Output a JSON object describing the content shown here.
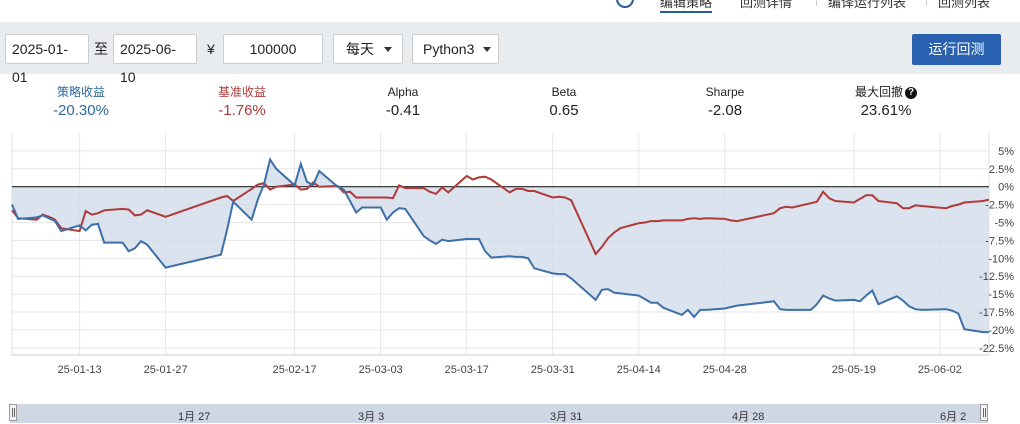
{
  "top_tabs": [
    "编辑策略",
    "回测详情",
    "编译运行列表",
    "回测列表"
  ],
  "toolbar": {
    "start_date": "2025-01-01",
    "to_label": "至",
    "end_date": "2025-06-10",
    "currency_symbol": "¥",
    "capital": "100000",
    "frequency": "每天",
    "language": "Python3",
    "run_button": "运行回测"
  },
  "metrics": [
    {
      "label": "策略收益",
      "value": "-20.30%",
      "label_color": "#2d6a9f",
      "value_color": "#2d6a9f"
    },
    {
      "label": "基准收益",
      "value": "-1.76%",
      "label_color": "#b03a3a",
      "value_color": "#b03a3a"
    },
    {
      "label": "Alpha",
      "value": "-0.41"
    },
    {
      "label": "Beta",
      "value": "0.65"
    },
    {
      "label": "Sharpe",
      "value": "-2.08"
    },
    {
      "label": "最大回撤",
      "value": "23.61%"
    }
  ],
  "navigator": {
    "labels": [
      "1月 27",
      "3月 3",
      "3月 31",
      "4月 28",
      "6月 2"
    ]
  },
  "colors": {
    "strategy": "#3d6fa8",
    "benchmark": "#b03a3a",
    "fill": "#d2dcea",
    "accent": "#2a60b0"
  },
  "chart_data": {
    "type": "area",
    "x_tick_labels": [
      "25-01-13",
      "25-01-27",
      "25-02-17",
      "25-03-03",
      "25-03-17",
      "25-03-31",
      "25-04-14",
      "25-04-28",
      "25-05-19",
      "25-06-02"
    ],
    "y_tick_labels": [
      "5%",
      "2.5%",
      "0%",
      "-2.5%",
      "-5%",
      "-7.5%",
      "-10%",
      "-12.5%",
      "-15%",
      "-17.5%",
      "-20%",
      "-22.5%"
    ],
    "ylim": [
      -23.5,
      7.5
    ],
    "y_axis_side": "right",
    "x_start": "2025-01-02",
    "x_end": "2025-06-10",
    "series": [
      {
        "name": "策略收益",
        "x": [
          "2025-01-02",
          "2025-01-03",
          "2025-01-06",
          "2025-01-07",
          "2025-01-08",
          "2025-01-09",
          "2025-01-10",
          "2025-01-13",
          "2025-01-14",
          "2025-01-15",
          "2025-01-16",
          "2025-01-17",
          "2025-01-20",
          "2025-01-21",
          "2025-01-22",
          "2025-01-23",
          "2025-01-24",
          "2025-01-27",
          "2025-02-05",
          "2025-02-06",
          "2025-02-07",
          "2025-02-10",
          "2025-02-11",
          "2025-02-12",
          "2025-02-13",
          "2025-02-14",
          "2025-02-17",
          "2025-02-18",
          "2025-02-19",
          "2025-02-20",
          "2025-02-21",
          "2025-02-24",
          "2025-02-25",
          "2025-02-26",
          "2025-02-27",
          "2025-02-28",
          "2025-03-03",
          "2025-03-04",
          "2025-03-05",
          "2025-03-06",
          "2025-03-07",
          "2025-03-10",
          "2025-03-11",
          "2025-03-12",
          "2025-03-13",
          "2025-03-14",
          "2025-03-17",
          "2025-03-18",
          "2025-03-19",
          "2025-03-20",
          "2025-03-21",
          "2025-03-24",
          "2025-03-25",
          "2025-03-26",
          "2025-03-27",
          "2025-03-28",
          "2025-03-31",
          "2025-04-01",
          "2025-04-02",
          "2025-04-03",
          "2025-04-07",
          "2025-04-08",
          "2025-04-09",
          "2025-04-10",
          "2025-04-11",
          "2025-04-14",
          "2025-04-15",
          "2025-04-16",
          "2025-04-17",
          "2025-04-18",
          "2025-04-21",
          "2025-04-22",
          "2025-04-23",
          "2025-04-24",
          "2025-04-25",
          "2025-04-28",
          "2025-04-29",
          "2025-04-30",
          "2025-05-06",
          "2025-05-07",
          "2025-05-08",
          "2025-05-09",
          "2025-05-12",
          "2025-05-13",
          "2025-05-14",
          "2025-05-15",
          "2025-05-16",
          "2025-05-19",
          "2025-05-20",
          "2025-05-21",
          "2025-05-22",
          "2025-05-23",
          "2025-05-26",
          "2025-05-27",
          "2025-05-28",
          "2025-05-29",
          "2025-05-30",
          "2025-06-03",
          "2025-06-04",
          "2025-06-05",
          "2025-06-06",
          "2025-06-09",
          "2025-06-10"
        ],
        "y": [
          -2.5,
          -4.5,
          -4.3,
          -4.0,
          -4.4,
          -4.8,
          -6.2,
          -5.4,
          -6.1,
          -5.3,
          -5.2,
          -7.8,
          -7.8,
          -9.0,
          -8.6,
          -7.6,
          -8.1,
          -11.3,
          -9.5,
          -6.0,
          -2.1,
          -4.6,
          -1.8,
          0.3,
          3.8,
          2.5,
          0.2,
          3.2,
          0.7,
          0.2,
          2.2,
          0.0,
          -0.4,
          -2.0,
          -3.6,
          -2.9,
          -2.9,
          -4.6,
          -3.6,
          -3.0,
          -3.1,
          -6.9,
          -7.5,
          -8.0,
          -7.4,
          -7.6,
          -7.3,
          -7.3,
          -7.3,
          -9.0,
          -9.9,
          -9.7,
          -9.8,
          -9.8,
          -10.0,
          -11.4,
          -12.1,
          -12.2,
          -12.2,
          -12.8,
          -15.8,
          -14.4,
          -14.3,
          -14.8,
          -14.9,
          -15.2,
          -15.7,
          -16.2,
          -16.2,
          -16.9,
          -17.9,
          -17.2,
          -18.2,
          -17.2,
          -17.2,
          -17.0,
          -16.8,
          -16.6,
          -16.0,
          -17.1,
          -17.2,
          -17.2,
          -17.2,
          -16.4,
          -15.2,
          -15.6,
          -15.9,
          -15.8,
          -16.0,
          -15.2,
          -14.5,
          -16.4,
          -15.3,
          -15.9,
          -16.7,
          -17.1,
          -17.2,
          -17.1,
          -17.3,
          -17.7,
          -19.9,
          -20.3,
          -20.3
        ]
      },
      {
        "name": "基准收益",
        "x": [
          "2025-01-02",
          "2025-01-03",
          "2025-01-06",
          "2025-01-07",
          "2025-01-08",
          "2025-01-09",
          "2025-01-10",
          "2025-01-13",
          "2025-01-14",
          "2025-01-15",
          "2025-01-16",
          "2025-01-17",
          "2025-01-20",
          "2025-01-21",
          "2025-01-22",
          "2025-01-23",
          "2025-01-24",
          "2025-01-27",
          "2025-02-05",
          "2025-02-06",
          "2025-02-07",
          "2025-02-10",
          "2025-02-11",
          "2025-02-12",
          "2025-02-13",
          "2025-02-14",
          "2025-02-17",
          "2025-02-18",
          "2025-02-19",
          "2025-02-20",
          "2025-02-21",
          "2025-02-24",
          "2025-02-25",
          "2025-02-26",
          "2025-02-27",
          "2025-02-28",
          "2025-03-03",
          "2025-03-04",
          "2025-03-05",
          "2025-03-06",
          "2025-03-07",
          "2025-03-10",
          "2025-03-11",
          "2025-03-12",
          "2025-03-13",
          "2025-03-14",
          "2025-03-17",
          "2025-03-18",
          "2025-03-19",
          "2025-03-20",
          "2025-03-21",
          "2025-03-24",
          "2025-03-25",
          "2025-03-26",
          "2025-03-27",
          "2025-03-28",
          "2025-03-31",
          "2025-04-01",
          "2025-04-02",
          "2025-04-03",
          "2025-04-07",
          "2025-04-08",
          "2025-04-09",
          "2025-04-10",
          "2025-04-11",
          "2025-04-14",
          "2025-04-15",
          "2025-04-16",
          "2025-04-17",
          "2025-04-18",
          "2025-04-21",
          "2025-04-22",
          "2025-04-23",
          "2025-04-24",
          "2025-04-25",
          "2025-04-28",
          "2025-04-29",
          "2025-04-30",
          "2025-05-06",
          "2025-05-07",
          "2025-05-08",
          "2025-05-09",
          "2025-05-12",
          "2025-05-13",
          "2025-05-14",
          "2025-05-15",
          "2025-05-16",
          "2025-05-19",
          "2025-05-20",
          "2025-05-21",
          "2025-05-22",
          "2025-05-23",
          "2025-05-26",
          "2025-05-27",
          "2025-05-28",
          "2025-05-29",
          "2025-05-30",
          "2025-06-03",
          "2025-06-04",
          "2025-06-05",
          "2025-06-06",
          "2025-06-09",
          "2025-06-10"
        ],
        "y": [
          -3.3,
          -4.4,
          -4.6,
          -3.9,
          -4.2,
          -4.6,
          -5.8,
          -6.2,
          -3.4,
          -3.9,
          -3.7,
          -3.3,
          -3.1,
          -3.2,
          -4.0,
          -3.9,
          -3.3,
          -4.2,
          -1.5,
          -1.3,
          -2.0,
          -0.3,
          0.3,
          0.5,
          -0.4,
          0.0,
          0.3,
          -0.4,
          -0.3,
          0.6,
          0.0,
          0.1,
          -0.8,
          -0.7,
          -1.5,
          -1.5,
          -1.5,
          -1.5,
          -1.6,
          0.2,
          -0.2,
          -0.2,
          -0.7,
          -1.0,
          -0.1,
          -0.8,
          1.5,
          1.0,
          1.3,
          1.4,
          1.0,
          -0.8,
          -0.3,
          -0.3,
          -0.6,
          -0.6,
          -1.5,
          -1.4,
          -1.5,
          -1.9,
          -9.4,
          -8.4,
          -7.2,
          -6.4,
          -5.8,
          -5.1,
          -5.0,
          -4.8,
          -4.8,
          -4.7,
          -4.7,
          -4.5,
          -4.4,
          -4.5,
          -4.4,
          -4.5,
          -4.7,
          -4.8,
          -3.7,
          -3.0,
          -2.8,
          -2.9,
          -2.3,
          -2.1,
          -0.7,
          -1.6,
          -2.0,
          -2.2,
          -1.7,
          -1.2,
          -1.2,
          -2.0,
          -2.3,
          -3.0,
          -3.0,
          -2.6,
          -2.7,
          -3.0,
          -2.7,
          -2.5,
          -2.2,
          -2.0,
          -1.8
        ]
      }
    ]
  }
}
